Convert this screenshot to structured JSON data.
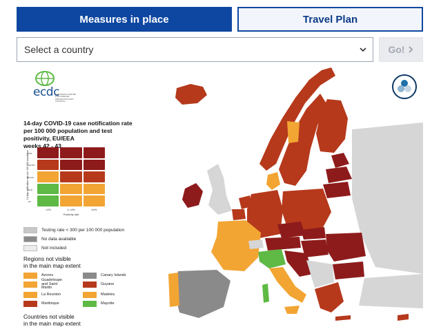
{
  "tabs": {
    "measures_label": "Measures in place",
    "travel_label": "Travel Plan"
  },
  "country_select": {
    "placeholder": "Select a country"
  },
  "go_button": {
    "label": "Go!",
    "icon": "chevron-right-icon"
  },
  "map": {
    "logo_text": "ecdc",
    "logo_subtitle": "EUROPEAN CENTRE FOR DISEASE PREVENTION AND CONTROL",
    "title_line1": "14-day COVID-19 case notification rate",
    "title_line2": "per 100 000 population and test positivity, EU/EEA",
    "title_line3": "weeks 42 - 43",
    "grid_y_label": "14-day notification rate per 100 000 population",
    "grid_y_ticks": [
      ">500",
      "150-500",
      "50-150",
      "25-50",
      "<25"
    ],
    "grid_x_ticks": [
      "<1%",
      "1-<4%",
      "≥4%"
    ],
    "grid_x_label": "Positivity rate",
    "grid_colors": [
      [
        "#8e1b1b",
        "#8e1b1b",
        "#8e1b1b"
      ],
      [
        "#b6391c",
        "#8e1b1b",
        "#8e1b1b"
      ],
      [
        "#f2a533",
        "#b6391c",
        "#b6391c"
      ],
      [
        "#5eb945",
        "#f2a533",
        "#f2a533"
      ],
      [
        "#5eb945",
        "#f2a533",
        "#f2a533"
      ]
    ],
    "keys": [
      {
        "label": "Testing rate < 300 per 100 000 population",
        "color": "#c8c8c8"
      },
      {
        "label": "No data available",
        "color": "#8a8a8a"
      },
      {
        "label": "Not included",
        "color": "#ececec"
      }
    ],
    "regions_heading_line1": "Regions not visible",
    "regions_heading_line2": "in the main map extent",
    "regions": [
      {
        "label": "Azores",
        "color": "#f2a533"
      },
      {
        "label": "Canary Islands",
        "color": "#8a8a8a"
      },
      {
        "label": "Guadeloupe and Saint Martin",
        "color": "#f2a533"
      },
      {
        "label": "Guyane",
        "color": "#b6391c"
      },
      {
        "label": "La Reunion",
        "color": "#f2a533"
      },
      {
        "label": "Madeira",
        "color": "#f2a533"
      },
      {
        "label": "Martinique",
        "color": "#b6391c"
      },
      {
        "label": "Mayotte",
        "color": "#5eb945"
      }
    ],
    "countries_heading_line1": "Countries not visible",
    "countries_heading_line2": "in the main map extent",
    "layers_icon": "layers-icon",
    "colors": {
      "dark_red": "#8e1b1b",
      "red": "#b6391c",
      "orange": "#f2a533",
      "green": "#5eb945",
      "grey": "#8a8a8a",
      "light_grey": "#d6d6d6",
      "brand_blue": "#0e47a1"
    }
  }
}
